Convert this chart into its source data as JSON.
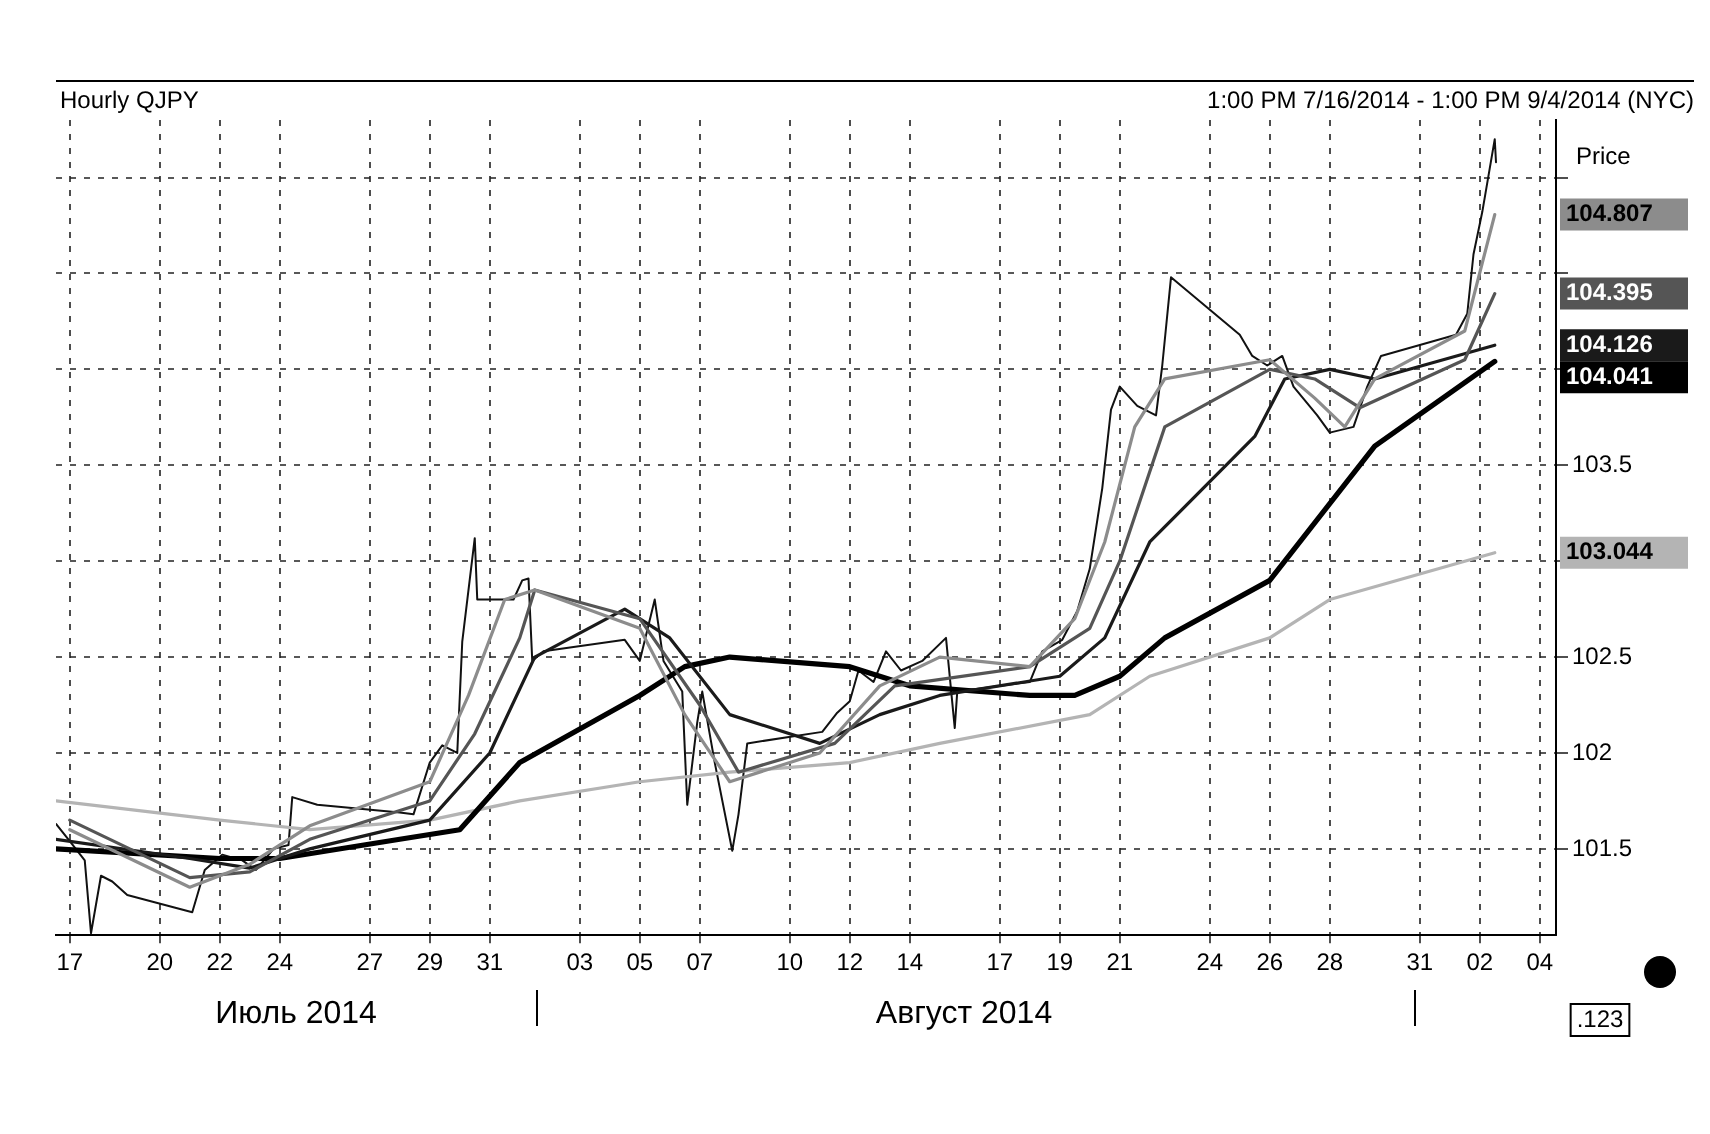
{
  "chart_data": {
    "type": "line",
    "title": "Hourly QJPY",
    "subtitle": "1:00 PM 7/16/2014 - 1:00 PM 9/4/2014 (NYC)",
    "ylabel": "Price",
    "xlim": [
      "2014-07-16T13:00",
      "2014-09-04T13:00"
    ],
    "ylim": [
      101.05,
      105.3
    ],
    "xticks": [
      {
        "value": "2014-07-17",
        "label": "17"
      },
      {
        "value": "2014-07-20",
        "label": "20"
      },
      {
        "value": "2014-07-22",
        "label": "22"
      },
      {
        "value": "2014-07-24",
        "label": "24"
      },
      {
        "value": "2014-07-27",
        "label": "27"
      },
      {
        "value": "2014-07-29",
        "label": "29"
      },
      {
        "value": "2014-07-31",
        "label": "31"
      },
      {
        "value": "2014-08-03",
        "label": "03"
      },
      {
        "value": "2014-08-05",
        "label": "05"
      },
      {
        "value": "2014-08-07",
        "label": "07"
      },
      {
        "value": "2014-08-10",
        "label": "10"
      },
      {
        "value": "2014-08-12",
        "label": "12"
      },
      {
        "value": "2014-08-14",
        "label": "14"
      },
      {
        "value": "2014-08-17",
        "label": "17"
      },
      {
        "value": "2014-08-19",
        "label": "19"
      },
      {
        "value": "2014-08-21",
        "label": "21"
      },
      {
        "value": "2014-08-24",
        "label": "24"
      },
      {
        "value": "2014-08-26",
        "label": "26"
      },
      {
        "value": "2014-08-28",
        "label": "28"
      },
      {
        "value": "2014-08-31",
        "label": "31"
      },
      {
        "value": "2014-09-02",
        "label": "02"
      },
      {
        "value": "2014-09-04",
        "label": "04"
      }
    ],
    "yticks": [
      101.5,
      102,
      102.5,
      {
        "value": 103,
        "label": null
      },
      103.5,
      {
        "value": 104,
        "label": null
      },
      {
        "value": 104.5,
        "label": null
      },
      {
        "value": 105,
        "label": null
      }
    ],
    "grid": true,
    "marker": "none",
    "line_style": "solid",
    "series": [
      {
        "color": "#111111",
        "x": [
          "2014-07-16T13:00",
          "2014-07-17T00:00",
          "2014-07-17T12:00",
          "2014-07-17T17:00",
          "2014-07-18T01:00",
          "2014-07-18T10:00",
          "2014-07-18T22:00",
          "2014-07-21T02:00",
          "2014-07-21T12:00",
          "2014-07-22T02:00",
          "2014-07-22T18:00",
          "2014-07-23T05:00",
          "2014-07-23T19:00",
          "2014-07-24T07:00",
          "2014-07-24T10:00",
          "2014-07-25T06:00",
          "2014-07-28T00:00",
          "2014-07-28T11:00",
          "2014-07-29T00:00",
          "2014-07-29T10:00",
          "2014-07-29T22:00",
          "2014-07-30T02:00",
          "2014-07-30T12:00",
          "2014-07-30T14:00",
          "2014-07-31T07:00",
          "2014-07-31T19:00",
          "2014-08-01T02:00",
          "2014-08-01T07:00",
          "2014-08-01T10:00",
          "2014-08-01T19:00",
          "2014-08-04T12:00",
          "2014-08-05T00:00",
          "2014-08-05T12:00",
          "2014-08-05T19:00",
          "2014-08-06T10:00",
          "2014-08-06T14:00",
          "2014-08-06T22:00",
          "2014-08-07T02:00",
          "2014-08-07T12:00",
          "2014-08-08T02:00",
          "2014-08-08T07:00",
          "2014-08-08T14:00",
          "2014-08-11T02:00",
          "2014-08-11T14:00",
          "2014-08-12T00:00",
          "2014-08-12T07:00",
          "2014-08-12T19:00",
          "2014-08-13T05:00",
          "2014-08-13T17:00",
          "2014-08-14T10:00",
          "2014-08-15T05:00",
          "2014-08-15T12:00",
          "2014-08-15T14:00",
          "2014-08-18T00:00",
          "2014-08-18T10:00",
          "2014-08-19T02:00",
          "2014-08-19T14:00",
          "2014-08-20T00:00",
          "2014-08-20T10:00",
          "2014-08-20T17:00",
          "2014-08-21T00:00",
          "2014-08-21T14:00",
          "2014-08-22T05:00",
          "2014-08-22T10:00",
          "2014-08-22T17:00",
          "2014-08-25T00:00",
          "2014-08-25T10:00",
          "2014-08-25T22:00",
          "2014-08-26T10:00",
          "2014-08-26T19:00",
          "2014-08-27T14:00",
          "2014-08-28T00:00",
          "2014-08-28T19:00",
          "2014-08-29T06:00",
          "2014-08-29T17:00",
          "2014-09-01T05:00",
          "2014-09-01T14:00",
          "2014-09-01T19:00",
          "2014-09-02T02:00",
          "2014-09-02T12:00",
          "2014-09-02T13:00"
        ],
        "values": [
          101.63,
          101.54,
          101.44,
          101.06,
          101.36,
          101.33,
          101.26,
          101.17,
          101.39,
          101.47,
          101.44,
          101.39,
          101.5,
          101.52,
          101.77,
          101.73,
          101.69,
          101.68,
          101.95,
          102.04,
          102.0,
          102.58,
          103.12,
          102.8,
          102.8,
          102.8,
          102.9,
          102.91,
          102.48,
          102.53,
          102.59,
          102.48,
          102.8,
          102.48,
          102.32,
          101.73,
          102.16,
          102.32,
          101.95,
          101.49,
          101.68,
          102.05,
          102.11,
          102.21,
          102.27,
          102.43,
          102.37,
          102.53,
          102.43,
          102.48,
          102.6,
          102.13,
          102.32,
          102.37,
          102.53,
          102.59,
          102.74,
          102.96,
          103.38,
          103.79,
          103.91,
          103.81,
          103.76,
          104.02,
          104.48,
          104.18,
          104.07,
          104.02,
          104.07,
          103.91,
          103.76,
          103.67,
          103.7,
          103.91,
          104.07,
          104.18,
          104.29,
          104.6,
          104.82,
          105.2,
          105.08
        ]
      },
      {
        "color": "#8c8c8c",
        "x": [
          "2014-07-17T00:00",
          "2014-07-21T00:00",
          "2014-07-23T00:00",
          "2014-07-25T00:00",
          "2014-07-29T00:00",
          "2014-07-30T07:00",
          "2014-07-31T12:00",
          "2014-08-01T12:00",
          "2014-08-05T00:00",
          "2014-08-06T12:00",
          "2014-08-08T00:00",
          "2014-08-11T00:00",
          "2014-08-13T00:00",
          "2014-08-15T00:00",
          "2014-08-18T00:00",
          "2014-08-19T12:00",
          "2014-08-20T12:00",
          "2014-08-21T12:00",
          "2014-08-22T12:00",
          "2014-08-26T00:00",
          "2014-08-27T12:00",
          "2014-08-28T12:00",
          "2014-08-29T12:00",
          "2014-09-01T12:00",
          "2014-09-02T12:00"
        ],
        "values": [
          101.6,
          101.3,
          101.42,
          101.62,
          101.85,
          102.3,
          102.8,
          102.85,
          102.65,
          102.2,
          101.85,
          102.0,
          102.35,
          102.5,
          102.45,
          102.7,
          103.1,
          103.7,
          103.95,
          104.05,
          103.85,
          103.7,
          103.95,
          104.2,
          104.807
        ]
      },
      {
        "color": "#555555",
        "x": [
          "2014-07-17T00:00",
          "2014-07-21T00:00",
          "2014-07-23T00:00",
          "2014-07-25T00:00",
          "2014-07-29T00:00",
          "2014-07-30T12:00",
          "2014-08-01T00:00",
          "2014-08-01T12:00",
          "2014-08-05T00:00",
          "2014-08-07T00:00",
          "2014-08-08T07:00",
          "2014-08-11T12:00",
          "2014-08-13T12:00",
          "2014-08-18T00:00",
          "2014-08-20T00:00",
          "2014-08-21T00:00",
          "2014-08-22T12:00",
          "2014-08-26T00:00",
          "2014-08-27T12:00",
          "2014-08-29T00:00",
          "2014-09-01T12:00",
          "2014-09-02T12:00"
        ],
        "values": [
          101.65,
          101.35,
          101.38,
          101.55,
          101.75,
          102.1,
          102.6,
          102.85,
          102.7,
          102.25,
          101.9,
          102.05,
          102.35,
          102.45,
          102.65,
          103.0,
          103.7,
          104.0,
          103.95,
          103.8,
          104.05,
          104.395
        ]
      },
      {
        "color": "#1a1a1a",
        "x": [
          "2014-07-16T13:00",
          "2014-07-21T00:00",
          "2014-07-23T00:00",
          "2014-07-25T00:00",
          "2014-07-29T00:00",
          "2014-07-31T00:00",
          "2014-08-01T12:00",
          "2014-08-04T12:00",
          "2014-08-06T00:00",
          "2014-08-08T00:00",
          "2014-08-11T00:00",
          "2014-08-13T00:00",
          "2014-08-15T00:00",
          "2014-08-19T00:00",
          "2014-08-20T12:00",
          "2014-08-22T00:00",
          "2014-08-25T12:00",
          "2014-08-26T12:00",
          "2014-08-28T00:00",
          "2014-08-29T12:00",
          "2014-09-02T12:00"
        ],
        "values": [
          101.55,
          101.45,
          101.4,
          101.5,
          101.65,
          102.0,
          102.5,
          102.75,
          102.6,
          102.2,
          102.05,
          102.2,
          102.3,
          102.4,
          102.6,
          103.1,
          103.65,
          103.95,
          104.0,
          103.95,
          104.126
        ]
      },
      {
        "color": "#000000",
        "x": [
          "2014-07-16T13:00",
          "2014-07-22T00:00",
          "2014-07-24T00:00",
          "2014-07-28T00:00",
          "2014-07-30T00:00",
          "2014-08-01T00:00",
          "2014-08-05T00:00",
          "2014-08-06T12:00",
          "2014-08-08T00:00",
          "2014-08-12T00:00",
          "2014-08-14T00:00",
          "2014-08-18T00:00",
          "2014-08-19T12:00",
          "2014-08-21T00:00",
          "2014-08-22T12:00",
          "2014-08-26T00:00",
          "2014-08-28T00:00",
          "2014-08-29T12:00",
          "2014-09-02T12:00"
        ],
        "values": [
          101.5,
          101.45,
          101.45,
          101.55,
          101.6,
          101.95,
          102.3,
          102.45,
          102.5,
          102.45,
          102.35,
          102.3,
          102.3,
          102.4,
          102.6,
          102.9,
          103.3,
          103.6,
          104.041
        ]
      },
      {
        "color": "#b4b4b4",
        "x": [
          "2014-07-16T13:00",
          "2014-07-22T00:00",
          "2014-07-25T00:00",
          "2014-07-29T00:00",
          "2014-08-01T00:00",
          "2014-08-05T00:00",
          "2014-08-08T00:00",
          "2014-08-12T00:00",
          "2014-08-15T00:00",
          "2014-08-20T00:00",
          "2014-08-22T00:00",
          "2014-08-26T00:00",
          "2014-08-28T00:00",
          "2014-09-02T12:00"
        ],
        "values": [
          101.75,
          101.65,
          101.6,
          101.65,
          101.75,
          101.85,
          101.9,
          101.95,
          102.05,
          102.2,
          102.4,
          102.6,
          102.8,
          103.044
        ]
      }
    ],
    "annotations": [
      "104.807",
      "104.395",
      "104.126",
      "104.041",
      "103.044",
      "Июль 2014",
      "Август 2014",
      ".123"
    ]
  }
}
